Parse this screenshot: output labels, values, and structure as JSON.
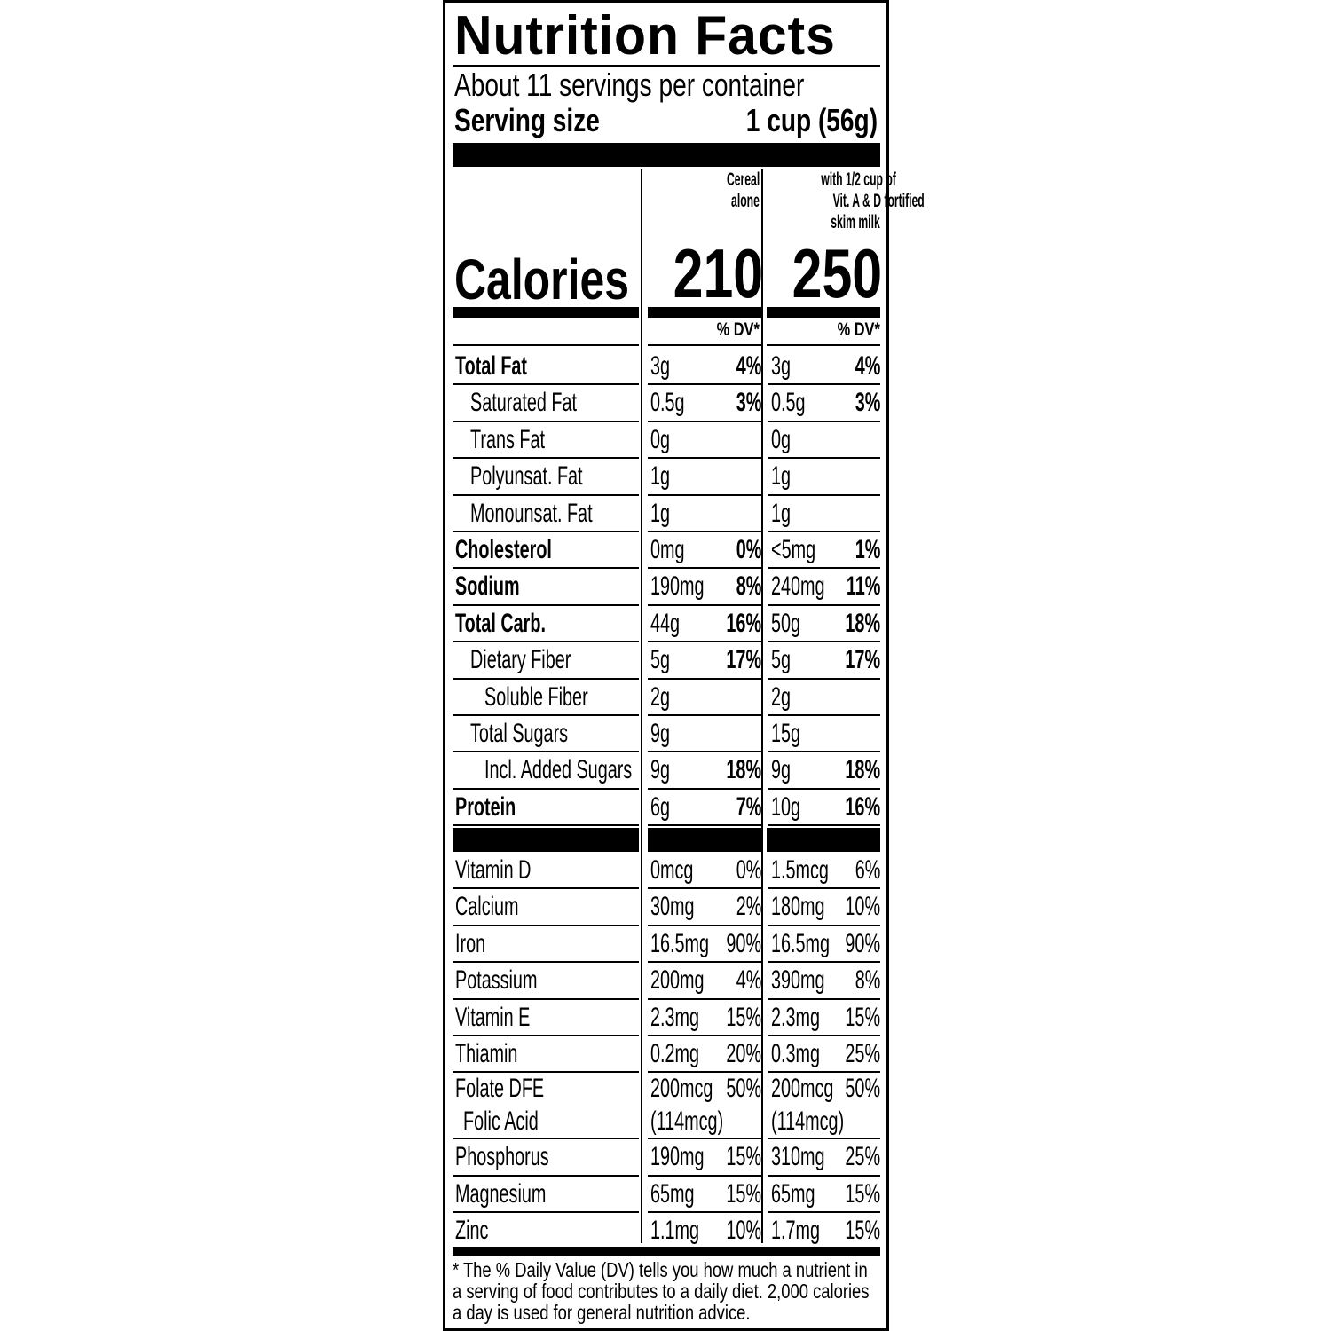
{
  "title": "Nutrition Facts",
  "servings": "About 11 servings per container",
  "serving_size_label": "Serving size",
  "serving_size_value": "1 cup (56g)",
  "columns": {
    "col1": [
      "Cereal",
      "alone"
    ],
    "col2": [
      "with 1/2 cup of",
      "Vit. A & D fortified",
      "skim milk"
    ]
  },
  "calories_label": "Calories",
  "calories": {
    "col1": "210",
    "col2": "250"
  },
  "dv_header": "% DV*",
  "nutrients": [
    {
      "name": "Total Fat",
      "bold": true,
      "indent": 0,
      "a1": "3g",
      "p1": "4%",
      "a2": "3g",
      "p2": "4%"
    },
    {
      "name": "Saturated Fat",
      "bold": false,
      "indent": 1,
      "a1": "0.5g",
      "p1": "3%",
      "a2": "0.5g",
      "p2": "3%"
    },
    {
      "name": "Trans Fat",
      "bold": false,
      "indent": 1,
      "a1": "0g",
      "p1": "",
      "a2": "0g",
      "p2": ""
    },
    {
      "name": "Polyunsat. Fat",
      "bold": false,
      "indent": 1,
      "a1": "1g",
      "p1": "",
      "a2": "1g",
      "p2": ""
    },
    {
      "name": "Monounsat. Fat",
      "bold": false,
      "indent": 1,
      "a1": "1g",
      "p1": "",
      "a2": "1g",
      "p2": ""
    },
    {
      "name": "Cholesterol",
      "bold": true,
      "indent": 0,
      "a1": "0mg",
      "p1": "0%",
      "a2": "<5mg",
      "p2": "1%"
    },
    {
      "name": "Sodium",
      "bold": true,
      "indent": 0,
      "a1": "190mg",
      "p1": "8%",
      "a2": "240mg",
      "p2": "11%"
    },
    {
      "name": "Total Carb.",
      "bold": true,
      "indent": 0,
      "a1": "44g",
      "p1": "16%",
      "a2": "50g",
      "p2": "18%"
    },
    {
      "name": "Dietary Fiber",
      "bold": false,
      "indent": 1,
      "a1": "5g",
      "p1": "17%",
      "a2": "5g",
      "p2": "17%"
    },
    {
      "name": "Soluble Fiber",
      "bold": false,
      "indent": 2,
      "a1": "2g",
      "p1": "",
      "a2": "2g",
      "p2": ""
    },
    {
      "name": "Total Sugars",
      "bold": false,
      "indent": 1,
      "a1": "9g",
      "p1": "",
      "a2": "15g",
      "p2": ""
    },
    {
      "name": "Incl. Added Sugars",
      "bold": false,
      "indent": 2,
      "a1": "9g",
      "p1": "18%",
      "a2": "9g",
      "p2": "18%"
    },
    {
      "name": "Protein",
      "bold": true,
      "indent": 0,
      "a1": "6g",
      "p1": "7%",
      "a2": "10g",
      "p2": "16%"
    }
  ],
  "vitamins": [
    {
      "name": "Vitamin D",
      "a1": "0mcg",
      "p1": "0%",
      "a2": "1.5mcg",
      "p2": "6%"
    },
    {
      "name": "Calcium",
      "a1": "30mg",
      "p1": "2%",
      "a2": "180mg",
      "p2": "10%"
    },
    {
      "name": "Iron",
      "a1": "16.5mg",
      "p1": "90%",
      "a2": "16.5mg",
      "p2": "90%"
    },
    {
      "name": "Potassium",
      "a1": "200mg",
      "p1": "4%",
      "a2": "390mg",
      "p2": "8%"
    },
    {
      "name": "Vitamin E",
      "a1": "2.3mg",
      "p1": "15%",
      "a2": "2.3mg",
      "p2": "15%"
    },
    {
      "name": "Thiamin",
      "a1": "0.2mg",
      "p1": "20%",
      "a2": "0.3mg",
      "p2": "25%"
    },
    {
      "name": "Folate DFE",
      "sub": "Folic Acid",
      "a1": "200mcg",
      "s1": "(114mcg)",
      "p1": "50%",
      "a2": "200mcg",
      "s2": "(114mcg)",
      "p2": "50%"
    },
    {
      "name": "Phosphorus",
      "a1": "190mg",
      "p1": "15%",
      "a2": "310mg",
      "p2": "25%"
    },
    {
      "name": "Magnesium",
      "a1": "65mg",
      "p1": "15%",
      "a2": "65mg",
      "p2": "15%"
    },
    {
      "name": "Zinc",
      "a1": "1.1mg",
      "p1": "10%",
      "a2": "1.7mg",
      "p2": "15%"
    }
  ],
  "footnote": "* The % Daily Value (DV) tells you how much a nutrient in a serving of food contributes to a daily diet. 2,000 calories a day is used for general nutrition advice."
}
